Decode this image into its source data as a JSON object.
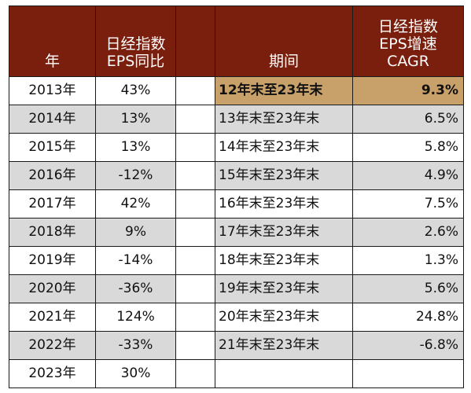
{
  "header": {
    "year": "年",
    "eps_yoy": [
      "日经指数",
      "EPS同比"
    ],
    "period": "期间",
    "cagr": [
      "日经指数",
      "EPS增速",
      "CAGR"
    ]
  },
  "rows": [
    {
      "year": "2013年",
      "eps_yoy": "43%",
      "period": "12年末至23年末",
      "cagr": "9.3%"
    },
    {
      "year": "2014年",
      "eps_yoy": "13%",
      "period": "13年末至23年末",
      "cagr": "6.5%"
    },
    {
      "year": "2015年",
      "eps_yoy": "13%",
      "period": "14年末至23年末",
      "cagr": "5.8%"
    },
    {
      "year": "2016年",
      "eps_yoy": "-12%",
      "period": "15年末至23年末",
      "cagr": "4.9%"
    },
    {
      "year": "2017年",
      "eps_yoy": "42%",
      "period": "16年末至23年末",
      "cagr": "7.5%"
    },
    {
      "year": "2018年",
      "eps_yoy": "9%",
      "period": "17年末至23年末",
      "cagr": "2.6%"
    },
    {
      "year": "2019年",
      "eps_yoy": "-14%",
      "period": "18年末至23年末",
      "cagr": "1.3%"
    },
    {
      "year": "2020年",
      "eps_yoy": "-36%",
      "period": "19年末至23年末",
      "cagr": "5.6%"
    },
    {
      "year": "2021年",
      "eps_yoy": "124%",
      "period": "20年末至23年末",
      "cagr": "24.8%"
    },
    {
      "year": "2022年",
      "eps_yoy": "-33%",
      "period": "21年末至23年末",
      "cagr": "-6.8%"
    },
    {
      "year": "2023年",
      "eps_yoy": "30%",
      "period": "",
      "cagr": ""
    }
  ],
  "colors": {
    "header_bg": "#7a1f0d",
    "header_text": "#ffffff",
    "highlight_row": "#c7a06a",
    "shaded_row": "#d9d9d9"
  }
}
